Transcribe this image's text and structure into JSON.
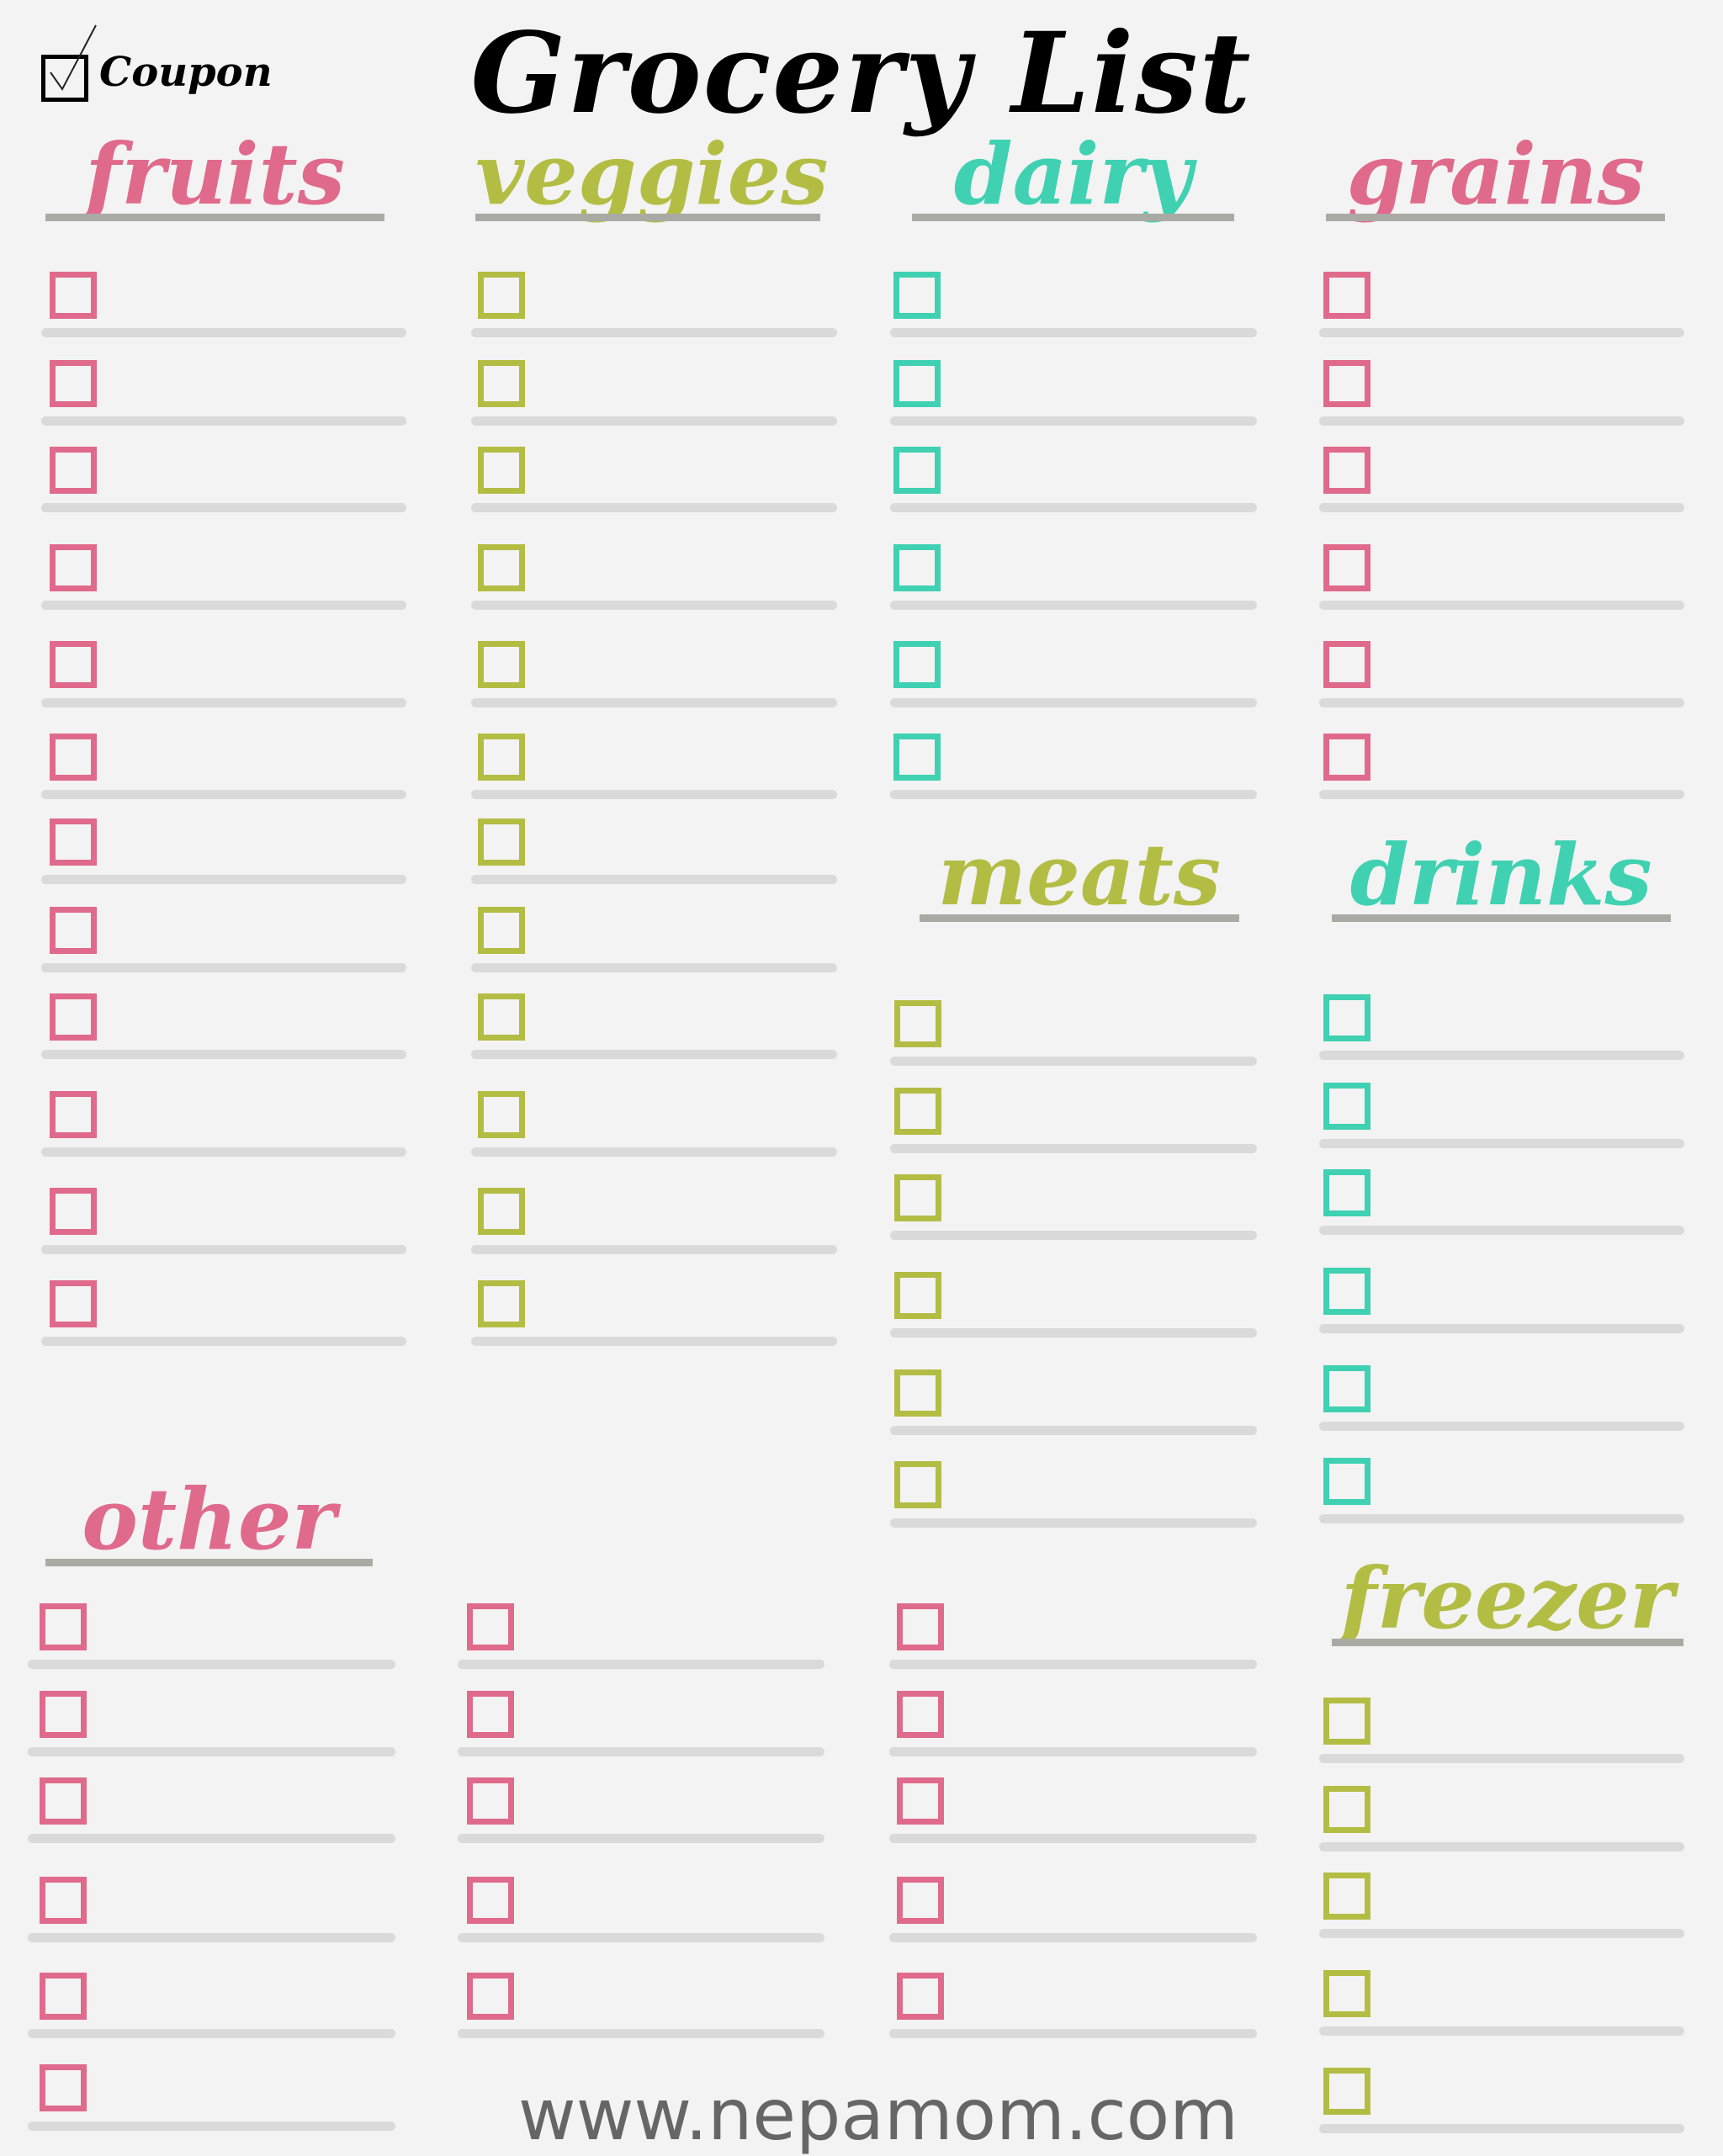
{
  "title": "Grocery List",
  "coupon": {
    "label": "Coupon",
    "checked": true
  },
  "colors": {
    "pink": "#e06a8c",
    "green": "#b3bd44",
    "teal": "#3fd1b2",
    "underline": "#aaaaa5",
    "row_line": "#dadada"
  },
  "sections": [
    {
      "key": "fruits",
      "label": "fruits",
      "color": "#e06a8c",
      "rows": 12
    },
    {
      "key": "veggies",
      "label": "veggies",
      "color": "#b3bd44",
      "rows": 12
    },
    {
      "key": "dairy",
      "label": "dairy",
      "color": "#3fd1b2",
      "rows": 6
    },
    {
      "key": "grains",
      "label": "grains",
      "color": "#e06a8c",
      "rows": 6
    },
    {
      "key": "meats",
      "label": "meats",
      "color": "#b3bd44",
      "rows": 6
    },
    {
      "key": "drinks",
      "label": "drinks",
      "color": "#3fd1b2",
      "rows": 6
    },
    {
      "key": "other",
      "label": "other",
      "color": "#e06a8c",
      "rows": [
        6,
        5,
        5
      ]
    },
    {
      "key": "freezer",
      "label": "freezer",
      "color": "#b3bd44",
      "rows": 5
    }
  ],
  "footer": {
    "url": "www.nepamom.com"
  }
}
